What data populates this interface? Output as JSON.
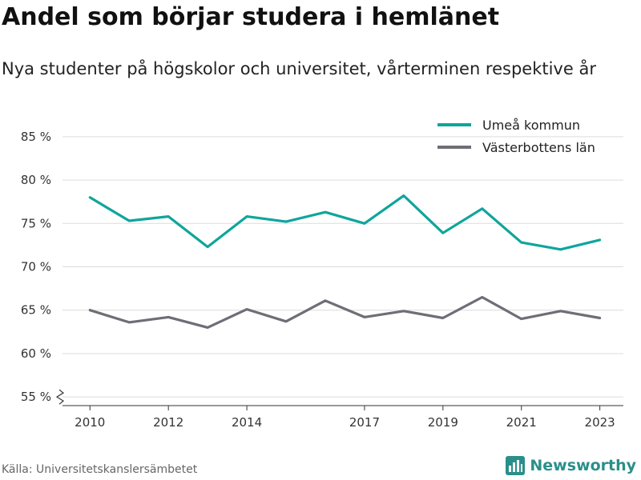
{
  "header": {
    "title": "Andel som börjar studera i hemlänet",
    "subtitle": "Nya studenter på högskolor och universitet, vårterminen respektive år"
  },
  "footer": {
    "source": "Källa: Universitetskanslersämbetet",
    "brand": "Newsworthy",
    "brand_icon": "bar-chart-logo-icon"
  },
  "colors": {
    "umea": "#0fa59c",
    "vasterbotten": "#6f6e77",
    "grid": "#dcdcdc",
    "axis": "#333333",
    "brand": "#2a8f8a"
  },
  "chart_data": {
    "type": "line",
    "x": [
      2010,
      2011,
      2012,
      2013,
      2014,
      2015,
      2016,
      2017,
      2018,
      2019,
      2020,
      2021,
      2022,
      2023
    ],
    "x_tick_values": [
      2010,
      2012,
      2014,
      2017,
      2019,
      2021,
      2023
    ],
    "x_tick_labels": [
      "2010",
      "2012",
      "2014",
      "2017",
      "2019",
      "2021",
      "2023"
    ],
    "xlim": [
      2009.3,
      2023.6
    ],
    "ylim": [
      54,
      86
    ],
    "y_ticks": [
      55,
      60,
      65,
      70,
      75,
      80,
      85
    ],
    "y_tick_labels": [
      "55 %",
      "60 %",
      "65 %",
      "70 %",
      "75 %",
      "80 %",
      "85 %"
    ],
    "y_axis_break": true,
    "grid": "horizontal",
    "legend_position": "top-right",
    "series": [
      {
        "name": "Umeå kommun",
        "color_key": "umea",
        "values": [
          78.0,
          75.3,
          75.8,
          72.3,
          75.8,
          75.2,
          76.3,
          75.0,
          78.2,
          73.9,
          76.7,
          72.8,
          72.0,
          73.1
        ]
      },
      {
        "name": "Västerbottens län",
        "color_key": "vasterbotten",
        "values": [
          65.0,
          63.6,
          64.2,
          63.0,
          65.1,
          63.7,
          66.1,
          64.2,
          64.9,
          64.1,
          66.5,
          64.0,
          64.9,
          64.1
        ]
      }
    ]
  }
}
